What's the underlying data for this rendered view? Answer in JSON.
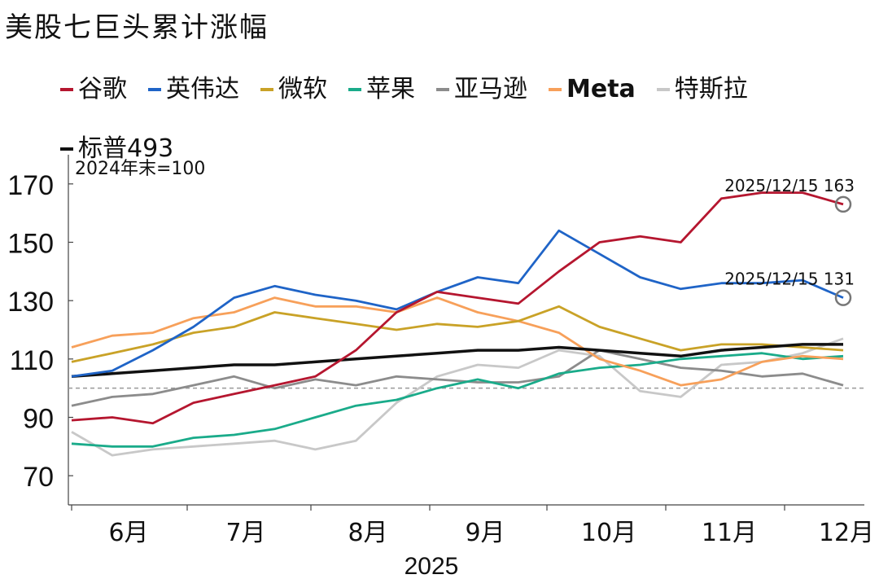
{
  "title": "美股七巨头累计涨幅",
  "chart_data": {
    "type": "line",
    "note": "2024年末=100",
    "xlabel": "2025",
    "x_tick_labels": [
      "6月",
      "7月",
      "8月",
      "9月",
      "10月",
      "11月",
      "12月"
    ],
    "y_ticks": [
      70,
      90,
      110,
      130,
      150,
      170
    ],
    "ylim": [
      60,
      180
    ],
    "reference_line": 100,
    "grid": false,
    "legend_position": "top",
    "annotations": [
      {
        "text": "2025/12/15 163",
        "series": "谷歌",
        "y": 163
      },
      {
        "text": "2025/12/15 131",
        "series": "英伟达",
        "y": 131
      }
    ],
    "x": [
      "5/22",
      "6/1",
      "6/15",
      "7/1",
      "7/15",
      "8/1",
      "8/15",
      "9/1",
      "9/10",
      "9/20",
      "10/1",
      "10/15",
      "10/25",
      "11/1",
      "11/10",
      "11/20",
      "11/25",
      "12/1",
      "12/8",
      "12/15"
    ],
    "series": [
      {
        "name": "谷歌",
        "color": "#b5162f",
        "values": [
          89,
          90,
          88,
          95,
          98,
          101,
          104,
          113,
          126,
          133,
          131,
          129,
          140,
          150,
          152,
          150,
          165,
          167,
          167,
          163
        ]
      },
      {
        "name": "英伟达",
        "color": "#1f64c7",
        "values": [
          104,
          106,
          113,
          121,
          131,
          135,
          132,
          130,
          127,
          133,
          138,
          136,
          154,
          146,
          138,
          134,
          136,
          136,
          137,
          131
        ]
      },
      {
        "name": "微软",
        "color": "#c9a227",
        "values": [
          109,
          112,
          115,
          119,
          121,
          126,
          124,
          122,
          120,
          122,
          121,
          123,
          128,
          121,
          117,
          113,
          115,
          115,
          114,
          113
        ]
      },
      {
        "name": "苹果",
        "color": "#1aab8a",
        "values": [
          81,
          80,
          80,
          83,
          84,
          86,
          90,
          94,
          96,
          100,
          103,
          100,
          105,
          107,
          108,
          110,
          111,
          112,
          110,
          111
        ]
      },
      {
        "name": "亚马逊",
        "color": "#8c8c8c",
        "values": [
          94,
          97,
          98,
          101,
          104,
          100,
          103,
          101,
          104,
          103,
          102,
          102,
          104,
          113,
          110,
          107,
          106,
          104,
          105,
          101
        ]
      },
      {
        "name": "Meta",
        "color": "#f7a05a",
        "values": [
          114,
          118,
          119,
          124,
          126,
          131,
          128,
          128,
          126,
          131,
          126,
          123,
          119,
          110,
          106,
          101,
          103,
          109,
          111,
          110
        ]
      },
      {
        "name": "特斯拉",
        "color": "#c8c8c8",
        "values": [
          85,
          77,
          79,
          80,
          81,
          82,
          79,
          82,
          95,
          104,
          108,
          107,
          113,
          111,
          99,
          97,
          108,
          109,
          112,
          117
        ]
      },
      {
        "name": "标普493",
        "color": "#111111",
        "values": [
          104,
          105,
          106,
          107,
          108,
          108,
          109,
          110,
          111,
          112,
          113,
          113,
          114,
          113,
          112,
          111,
          113,
          114,
          115,
          115
        ]
      }
    ]
  }
}
